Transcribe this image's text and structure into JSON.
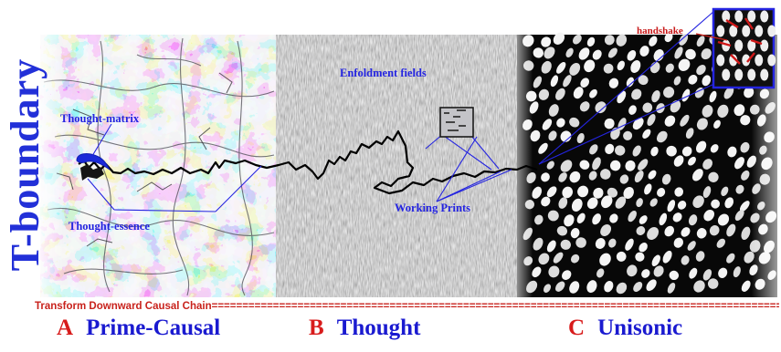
{
  "title": "T-boundary",
  "annotations": {
    "thought_matrix": "Thought-matrix",
    "thought_essence": "Thought-essence",
    "enfoldment_fields": "Enfoldment fields",
    "working_prints": "Working Prints",
    "handshake": "handshake"
  },
  "caption": "Transform Downward Causal Chain",
  "panels": [
    {
      "letter": "A",
      "name": "Prime-Causal"
    },
    {
      "letter": "B",
      "name": "Thought"
    },
    {
      "letter": "C",
      "name": "Unisonic"
    }
  ],
  "colors": {
    "title_blue": "#2230d8",
    "label_blue": "#1a1ad0",
    "annotation_blue": "#2424e0",
    "accent_red": "#c8221c",
    "chain_black": "#000000",
    "panel_c_background": "#080808"
  }
}
